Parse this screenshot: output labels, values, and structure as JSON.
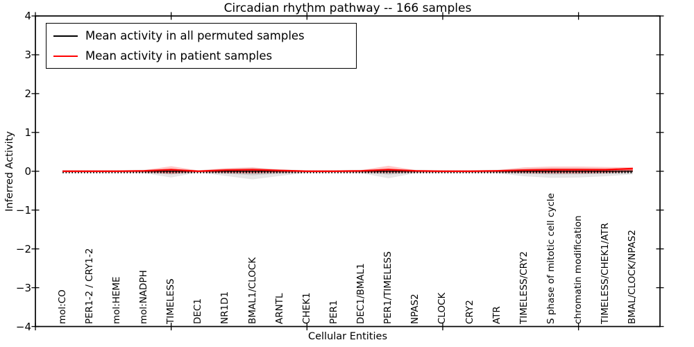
{
  "figure": {
    "title": "Circadian rhythm pathway -- 166 samples",
    "xlabel": "Cellular Entities",
    "ylabel": "Inferred Activity"
  },
  "legend": {
    "position": "upper-left",
    "items": [
      {
        "label": "Mean activity in all permuted samples",
        "color": "#000000"
      },
      {
        "label": "Mean activity in patient samples",
        "color": "#ff0000"
      }
    ]
  },
  "colors": {
    "background": "#ffffff",
    "axis": "#000000",
    "patient_line": "#ff0000",
    "permuted_line": "#000000",
    "patient_band": "#ff0000",
    "permuted_band": "#828282"
  },
  "chart_data": {
    "type": "line",
    "title": "Circadian rhythm pathway -- 166 samples",
    "xlabel": "Cellular Entities",
    "ylabel": "Inferred Activity",
    "ylim": [
      -4,
      4
    ],
    "yticks": [
      -4,
      -3,
      -2,
      -1,
      0,
      1,
      2,
      3,
      4
    ],
    "xlim": [
      0,
      23
    ],
    "x_major_ticks": [
      0,
      5,
      10,
      15,
      20
    ],
    "grid": false,
    "legend_position": "upper-left",
    "categories": [
      "mol:CO",
      "PER1-2 / CRY1-2",
      "mol:HEME",
      "mol:NADPH",
      "TIMELESS",
      "DEC1",
      "NR1D1",
      "BMAL1/CLOCK",
      "ARNTL",
      "CHEK1",
      "PER1",
      "DEC1/BMAL1",
      "PER1/TIMELESS",
      "NPAS2",
      "CLOCK",
      "CRY2",
      "ATR",
      "TIMELESS/CRY2",
      "S phase of mitotic cell cycle",
      "chromatin modification",
      "TIMELESS/CHEK1/ATR",
      "BMAL/CLOCK/NPAS2"
    ],
    "series": [
      {
        "name": "Mean activity in all permuted samples",
        "color": "#000000",
        "style": "solid-with-tick-markers",
        "values": [
          0,
          0,
          0,
          0,
          0,
          0,
          0,
          0,
          0,
          0,
          0,
          0,
          0,
          0,
          0,
          0,
          0,
          0,
          0,
          0,
          0,
          0
        ]
      },
      {
        "name": "Mean activity in patient samples",
        "color": "#ff0000",
        "style": "solid",
        "values": [
          0.0,
          0.0,
          0.0,
          0.01,
          0.04,
          0.0,
          0.03,
          0.04,
          0.02,
          0.0,
          0.0,
          0.01,
          0.04,
          0.01,
          0.0,
          0.0,
          0.01,
          0.03,
          0.04,
          0.04,
          0.04,
          0.07
        ]
      }
    ],
    "bands": [
      {
        "name": "permuted-samples-spread",
        "color": "#828282",
        "upper": [
          0.03,
          0.03,
          0.03,
          0.04,
          0.06,
          0.03,
          0.06,
          0.09,
          0.05,
          0.03,
          0.03,
          0.04,
          0.06,
          0.04,
          0.03,
          0.03,
          0.04,
          0.07,
          0.08,
          0.08,
          0.07,
          0.06
        ],
        "lower": [
          -0.03,
          -0.03,
          -0.03,
          -0.05,
          -0.16,
          -0.03,
          -0.12,
          -0.21,
          -0.12,
          -0.04,
          -0.03,
          -0.05,
          -0.18,
          -0.05,
          -0.04,
          -0.04,
          -0.05,
          -0.13,
          -0.17,
          -0.16,
          -0.13,
          -0.08
        ]
      },
      {
        "name": "patient-samples-spread",
        "color": "#ff0000",
        "upper": [
          0.02,
          0.02,
          0.02,
          0.03,
          0.13,
          0.02,
          0.08,
          0.1,
          0.04,
          0.02,
          0.02,
          0.03,
          0.14,
          0.03,
          0.02,
          0.02,
          0.03,
          0.1,
          0.12,
          0.12,
          0.11,
          0.1
        ],
        "lower": [
          -0.02,
          -0.02,
          -0.02,
          -0.03,
          -0.07,
          -0.02,
          -0.05,
          -0.06,
          -0.04,
          -0.02,
          -0.02,
          -0.03,
          -0.05,
          -0.03,
          -0.02,
          -0.02,
          -0.03,
          -0.05,
          -0.06,
          -0.06,
          -0.05,
          -0.02
        ]
      }
    ]
  }
}
